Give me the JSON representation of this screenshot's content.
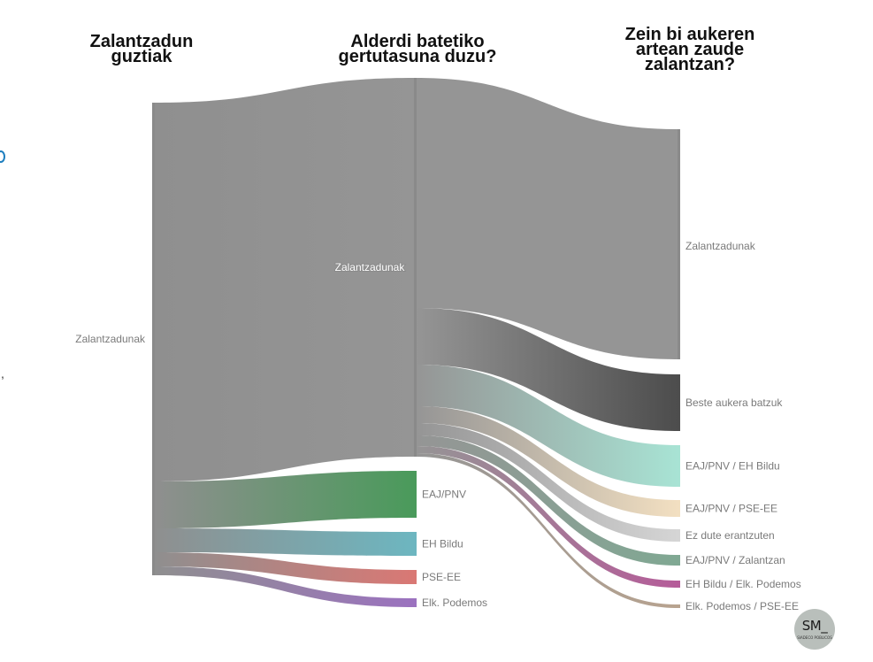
{
  "columns": [
    [
      "Zalantzadun",
      "guztiak"
    ],
    [
      "Alderdi batetiko",
      "gertutasuna duzu?"
    ],
    [
      "Zein bi aukeren",
      "artean zaude",
      "zalantzan?"
    ]
  ],
  "nodes": [
    {
      "id": "all",
      "label": "Zalantzadunak",
      "color": "#8f8f8f"
    },
    {
      "id": "mid_zal",
      "label": "Zalantzadunak",
      "color": "#959595"
    },
    {
      "id": "eaj",
      "label": "EAJ/PNV",
      "color": "#4a9a5b"
    },
    {
      "id": "ehb",
      "label": "EH Bildu",
      "color": "#6db6c0"
    },
    {
      "id": "pse",
      "label": "PSE-EE",
      "color": "#d97874"
    },
    {
      "id": "pod",
      "label": "Elk. Podemos",
      "color": "#9b72bf"
    },
    {
      "id": "r_zal",
      "label": "Zalantzadunak",
      "color": "#959595"
    },
    {
      "id": "r_beste",
      "label": "Beste aukera batzuk",
      "color": "#4d4d4d"
    },
    {
      "id": "r_eaj_ehb",
      "label": "EAJ/PNV / EH Bildu",
      "color": "#a8e3d4"
    },
    {
      "id": "r_eaj_pse",
      "label": "EAJ/PNV / PSE-EE",
      "color": "#f2dfc1"
    },
    {
      "id": "r_ez",
      "label": "Ez dute erantzuten",
      "color": "#d5d5d5"
    },
    {
      "id": "r_eaj_zal",
      "label": "EAJ/PNV / Zalantzan",
      "color": "#80a893"
    },
    {
      "id": "r_ehb_pod",
      "label": "EH Bildu / Elk. Podemos",
      "color": "#b55c99"
    },
    {
      "id": "r_pod_pse",
      "label": "Elk. Podemos / PSE-EE",
      "color": "#b8a38f"
    }
  ],
  "links": [
    {
      "source": "all",
      "target": "mid_zal",
      "value": 428
    },
    {
      "source": "all",
      "target": "eaj",
      "value": 53
    },
    {
      "source": "all",
      "target": "ehb",
      "value": 27
    },
    {
      "source": "all",
      "target": "pse",
      "value": 16
    },
    {
      "source": "all",
      "target": "pod",
      "value": 10
    },
    {
      "source": "mid_zal",
      "target": "r_zal",
      "value": 260
    },
    {
      "source": "mid_zal",
      "target": "r_beste",
      "value": 64
    },
    {
      "source": "mid_zal",
      "target": "r_eaj_ehb",
      "value": 47
    },
    {
      "source": "mid_zal",
      "target": "r_eaj_pse",
      "value": 19
    },
    {
      "source": "mid_zal",
      "target": "r_ez",
      "value": 14
    },
    {
      "source": "mid_zal",
      "target": "r_eaj_zal",
      "value": 12
    },
    {
      "source": "mid_zal",
      "target": "r_ehb_pod",
      "value": 8
    },
    {
      "source": "mid_zal",
      "target": "r_pod_pse",
      "value": 4
    }
  ],
  "logo": {
    "text": "SM_",
    "subtitle": "SIADECO POBLICOS"
  }
}
